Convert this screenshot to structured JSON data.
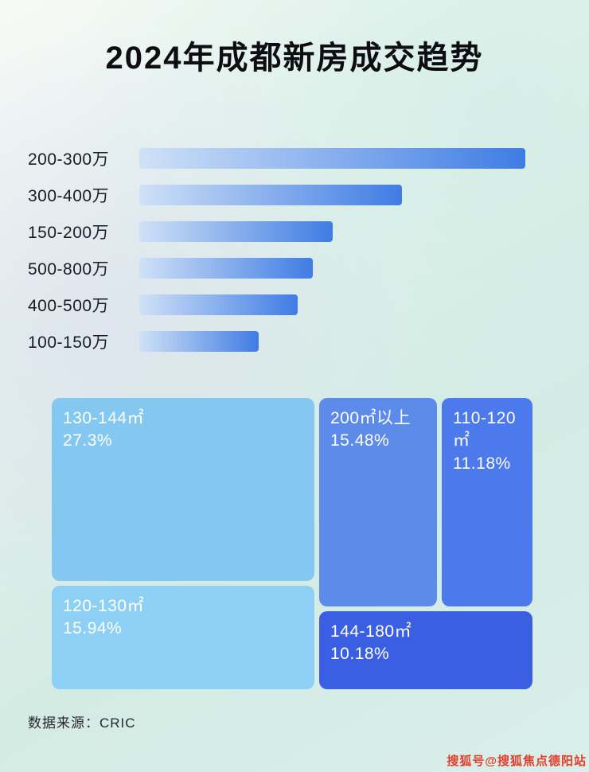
{
  "page": {
    "title": "2024年成都新房成交趋势",
    "source_note": "数据来源：CRIC",
    "watermark": "搜狐号@搜狐焦点德阳站"
  },
  "chart_data": [
    {
      "type": "bar",
      "orientation": "horizontal",
      "title": "2024年成都新房成交趋势",
      "categories": [
        "200-300万",
        "300-400万",
        "150-200万",
        "500-800万",
        "400-500万",
        "100-150万"
      ],
      "values_pct_of_max": [
        100,
        68,
        50,
        45,
        41,
        31
      ],
      "value_labels_shown": false,
      "bar_gradient": [
        "#cfe1f7",
        "#3f7ce4"
      ],
      "label_color": "#1b1b26",
      "grid": false,
      "legend": false
    },
    {
      "type": "treemap",
      "items": [
        {
          "label": "130-144㎡",
          "pct_label": "27.3%",
          "value": 27.3,
          "color": "#84c8f1"
        },
        {
          "label": "200㎡以上",
          "pct_label": "15.48%",
          "value": 15.48,
          "color": "#5d8be9"
        },
        {
          "label": "110-120㎡",
          "pct_label": "11.18%",
          "value": 11.18,
          "color": "#4c79ec"
        },
        {
          "label": "120-130㎡",
          "pct_label": "15.94%",
          "value": 15.94,
          "color": "#8ed0f5"
        },
        {
          "label": "144-180㎡",
          "pct_label": "10.18%",
          "value": 10.18,
          "color": "#3b5fe2"
        }
      ],
      "text_color": "#ffffff"
    }
  ]
}
